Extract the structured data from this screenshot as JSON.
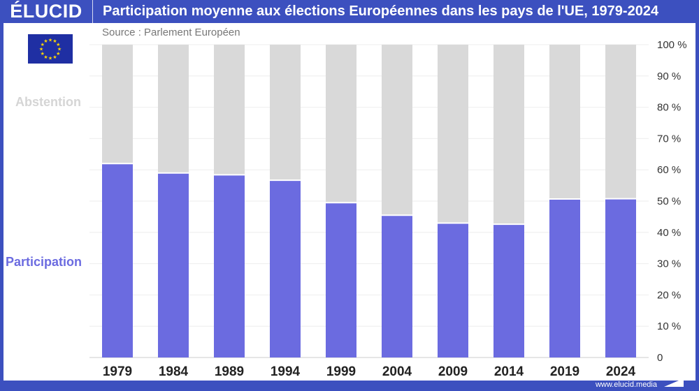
{
  "header": {
    "logo": "ÉLUCID",
    "title": "Participation moyenne aux élections Européennes dans les pays de l'UE, 1979-2024"
  },
  "source": "Source : Parlement Européen",
  "footer": {
    "url": "www.elucid.media"
  },
  "chart_data": {
    "type": "bar",
    "stacked": true,
    "title": "Participation moyenne aux élections Européennes dans les pays de l'UE, 1979-2024",
    "categories": [
      "1979",
      "1984",
      "1989",
      "1994",
      "1999",
      "2004",
      "2009",
      "2014",
      "2019",
      "2024"
    ],
    "series": [
      {
        "name": "Participation",
        "color": "#6b6be0",
        "values": [
          61.99,
          58.98,
          58.41,
          56.67,
          49.51,
          45.47,
          42.97,
          42.61,
          50.66,
          50.74
        ]
      },
      {
        "name": "Abstention",
        "color": "#d9d9d9",
        "values": [
          38.01,
          41.02,
          41.59,
          43.33,
          50.49,
          54.53,
          57.03,
          57.39,
          49.34,
          49.26
        ]
      }
    ],
    "ylim": [
      0,
      100
    ],
    "yticks": [
      "0",
      "10 %",
      "20 %",
      "30 %",
      "40 %",
      "50 %",
      "60 %",
      "70 %",
      "80 %",
      "90 %",
      "100 %"
    ],
    "grid": true,
    "legend": "left"
  }
}
